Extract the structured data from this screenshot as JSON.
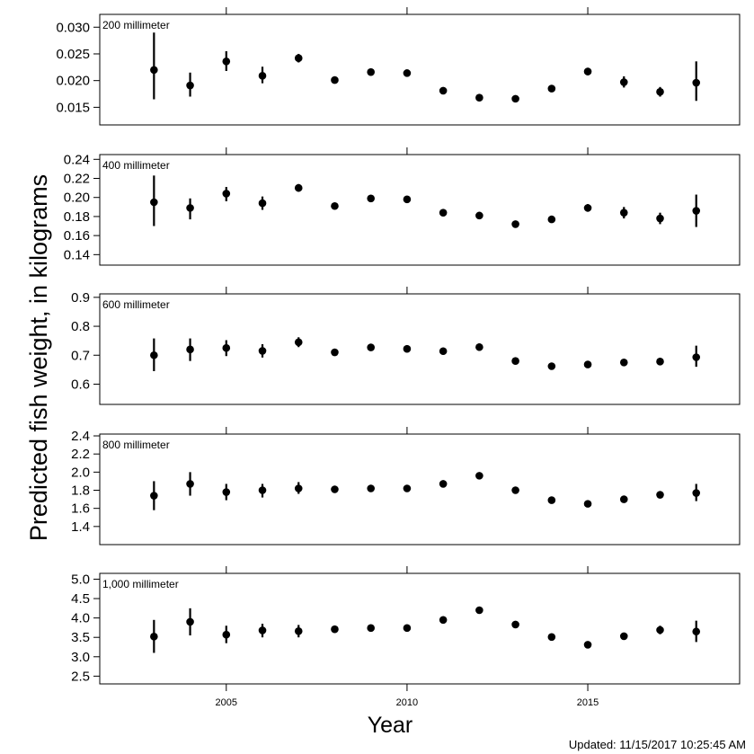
{
  "chart_data": {
    "type": "scatter",
    "xlabel": "Year",
    "ylabel": "Predicted fish weight, in kilograms",
    "x": [
      2003,
      2004,
      2005,
      2006,
      2007,
      2008,
      2009,
      2010,
      2011,
      2012,
      2013,
      2014,
      2015,
      2016,
      2017,
      2018
    ],
    "xlim": [
      2001.5,
      2019.2
    ],
    "xticks": [
      2005,
      2010,
      2015
    ],
    "panels": [
      {
        "label": "200 millimeter",
        "ylim": [
          0.0117,
          0.0324
        ],
        "yticks": [
          0.015,
          0.02,
          0.025,
          0.03
        ],
        "ytick_labels": [
          "0.015",
          "0.020",
          "0.025",
          "0.030"
        ],
        "values": [
          0.022,
          0.0191,
          0.0236,
          0.0209,
          0.0242,
          0.0201,
          0.0216,
          0.0214,
          0.0181,
          0.0168,
          0.0166,
          0.0185,
          0.0217,
          0.0197,
          0.0179,
          0.0196
        ],
        "lower": [
          0.0165,
          0.017,
          0.0218,
          0.0195,
          0.0234,
          0.0197,
          0.0212,
          0.021,
          0.0178,
          0.0165,
          0.0163,
          0.018,
          0.021,
          0.0187,
          0.017,
          0.0162
        ],
        "upper": [
          0.029,
          0.0215,
          0.0255,
          0.0226,
          0.025,
          0.0205,
          0.022,
          0.0218,
          0.0184,
          0.0171,
          0.0169,
          0.019,
          0.0224,
          0.0208,
          0.0188,
          0.0236
        ]
      },
      {
        "label": "400 millimeter",
        "ylim": [
          0.129,
          0.245
        ],
        "yticks": [
          0.14,
          0.16,
          0.18,
          0.2,
          0.22,
          0.24
        ],
        "ytick_labels": [
          "0.14",
          "0.16",
          "0.18",
          "0.20",
          "0.22",
          "0.24"
        ],
        "values": [
          0.195,
          0.189,
          0.204,
          0.194,
          0.21,
          0.191,
          0.199,
          0.198,
          0.184,
          0.181,
          0.172,
          0.177,
          0.189,
          0.184,
          0.178,
          0.186
        ],
        "lower": [
          0.17,
          0.177,
          0.196,
          0.187,
          0.206,
          0.188,
          0.196,
          0.195,
          0.181,
          0.178,
          0.169,
          0.174,
          0.185,
          0.178,
          0.172,
          0.169
        ],
        "upper": [
          0.223,
          0.199,
          0.211,
          0.201,
          0.214,
          0.194,
          0.202,
          0.201,
          0.187,
          0.184,
          0.175,
          0.18,
          0.193,
          0.19,
          0.184,
          0.203
        ]
      },
      {
        "label": "600 millimeter",
        "ylim": [
          0.53,
          0.912
        ],
        "yticks": [
          0.6,
          0.7,
          0.8,
          0.9
        ],
        "ytick_labels": [
          "0.6",
          "0.7",
          "0.8",
          "0.9"
        ],
        "values": [
          0.7,
          0.72,
          0.725,
          0.715,
          0.745,
          0.71,
          0.727,
          0.722,
          0.714,
          0.728,
          0.68,
          0.662,
          0.668,
          0.675,
          0.678,
          0.693
        ],
        "lower": [
          0.645,
          0.68,
          0.697,
          0.692,
          0.728,
          0.698,
          0.715,
          0.71,
          0.702,
          0.715,
          0.67,
          0.652,
          0.658,
          0.664,
          0.665,
          0.66
        ],
        "upper": [
          0.758,
          0.758,
          0.752,
          0.738,
          0.762,
          0.722,
          0.739,
          0.734,
          0.726,
          0.741,
          0.69,
          0.672,
          0.678,
          0.686,
          0.691,
          0.733
        ]
      },
      {
        "label": "800 millimeter",
        "ylim": [
          1.2,
          2.42
        ],
        "yticks": [
          1.4,
          1.6,
          1.8,
          2.0,
          2.2,
          2.4
        ],
        "ytick_labels": [
          "1.4",
          "1.6",
          "1.8",
          "2.0",
          "2.2",
          "2.4"
        ],
        "values": [
          1.74,
          1.87,
          1.78,
          1.8,
          1.82,
          1.81,
          1.82,
          1.82,
          1.87,
          1.96,
          1.8,
          1.69,
          1.65,
          1.7,
          1.75,
          1.77
        ],
        "lower": [
          1.58,
          1.74,
          1.69,
          1.72,
          1.76,
          1.77,
          1.79,
          1.79,
          1.84,
          1.93,
          1.77,
          1.66,
          1.62,
          1.67,
          1.71,
          1.68
        ],
        "upper": [
          1.9,
          2.0,
          1.87,
          1.87,
          1.89,
          1.85,
          1.86,
          1.85,
          1.91,
          1.99,
          1.83,
          1.72,
          1.68,
          1.73,
          1.79,
          1.87
        ]
      },
      {
        "label": "1,000 millimeter",
        "ylim": [
          2.3,
          5.15
        ],
        "yticks": [
          2.5,
          3.0,
          3.5,
          4.0,
          4.5,
          5.0
        ],
        "ytick_labels": [
          "2.5",
          "3.0",
          "3.5",
          "4.0",
          "4.5",
          "5.0"
        ],
        "values": [
          3.52,
          3.9,
          3.57,
          3.68,
          3.66,
          3.71,
          3.74,
          3.74,
          3.95,
          4.2,
          3.83,
          3.51,
          3.31,
          3.53,
          3.69,
          3.65
        ],
        "lower": [
          3.1,
          3.55,
          3.35,
          3.5,
          3.5,
          3.63,
          3.67,
          3.67,
          3.88,
          4.12,
          3.75,
          3.45,
          3.25,
          3.46,
          3.58,
          3.38
        ],
        "upper": [
          3.95,
          4.25,
          3.8,
          3.85,
          3.82,
          3.79,
          3.81,
          3.81,
          4.02,
          4.28,
          3.91,
          3.57,
          3.37,
          3.6,
          3.8,
          3.93
        ]
      }
    ]
  },
  "footer": {
    "updated_text": "Updated: 11/15/2017 10:25:45 AM"
  },
  "colors": {
    "marker": "#000000",
    "axis": "#000000",
    "background": "#ffffff"
  }
}
